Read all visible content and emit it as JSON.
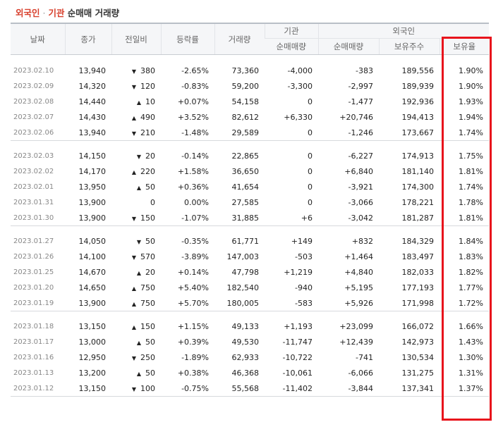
{
  "title": {
    "part1": "외국인",
    "sep": " · ",
    "part2": "기관",
    "part3": " 순매매 거래량"
  },
  "header": {
    "date": "날짜",
    "close": "종가",
    "change": "전일비",
    "rate": "등락률",
    "volume": "거래량",
    "institution_group": "기관",
    "foreign_group": "외국인",
    "inst_net": "순매매량",
    "foreign_net": "순매매량",
    "foreign_holdings": "보유주수",
    "foreign_ratio": "보유율"
  },
  "colors": {
    "up": "#d2221e",
    "down": "#1f58c8",
    "highlight": "#e8141c"
  },
  "rows": [
    {
      "date": "2023.02.10",
      "close": "13,940",
      "dir": "down",
      "change": "380",
      "rate": "-2.65%",
      "volume": "73,360",
      "inst": "-4,000",
      "inst_dir": "down",
      "foreign": "-383",
      "foreign_dir": "down",
      "holdings": "189,556",
      "ratio": "1.90%"
    },
    {
      "date": "2023.02.09",
      "close": "14,320",
      "dir": "down",
      "change": "120",
      "rate": "-0.83%",
      "volume": "59,200",
      "inst": "-3,300",
      "inst_dir": "down",
      "foreign": "-2,997",
      "foreign_dir": "down",
      "holdings": "189,939",
      "ratio": "1.90%"
    },
    {
      "date": "2023.02.08",
      "close": "14,440",
      "dir": "up",
      "change": "10",
      "rate": "+0.07%",
      "volume": "54,158",
      "inst": "0",
      "inst_dir": "flat",
      "foreign": "-1,477",
      "foreign_dir": "down",
      "holdings": "192,936",
      "ratio": "1.93%"
    },
    {
      "date": "2023.02.07",
      "close": "14,430",
      "dir": "up",
      "change": "490",
      "rate": "+3.52%",
      "volume": "82,612",
      "inst": "+6,330",
      "inst_dir": "up",
      "foreign": "+20,746",
      "foreign_dir": "up",
      "holdings": "194,413",
      "ratio": "1.94%"
    },
    {
      "date": "2023.02.06",
      "close": "13,940",
      "dir": "down",
      "change": "210",
      "rate": "-1.48%",
      "volume": "29,589",
      "inst": "0",
      "inst_dir": "flat",
      "foreign": "-1,246",
      "foreign_dir": "down",
      "holdings": "173,667",
      "ratio": "1.74%"
    },
    {
      "date": "2023.02.03",
      "close": "14,150",
      "dir": "down",
      "change": "20",
      "rate": "-0.14%",
      "volume": "22,865",
      "inst": "0",
      "inst_dir": "flat",
      "foreign": "-6,227",
      "foreign_dir": "down",
      "holdings": "174,913",
      "ratio": "1.75%"
    },
    {
      "date": "2023.02.02",
      "close": "14,170",
      "dir": "up",
      "change": "220",
      "rate": "+1.58%",
      "volume": "36,650",
      "inst": "0",
      "inst_dir": "flat",
      "foreign": "+6,840",
      "foreign_dir": "up",
      "holdings": "181,140",
      "ratio": "1.81%"
    },
    {
      "date": "2023.02.01",
      "close": "13,950",
      "dir": "up",
      "change": "50",
      "rate": "+0.36%",
      "volume": "41,654",
      "inst": "0",
      "inst_dir": "flat",
      "foreign": "-3,921",
      "foreign_dir": "down",
      "holdings": "174,300",
      "ratio": "1.74%"
    },
    {
      "date": "2023.01.31",
      "close": "13,900",
      "dir": "flat",
      "change": "0",
      "rate": "0.00%",
      "volume": "27,585",
      "inst": "0",
      "inst_dir": "flat",
      "foreign": "-3,066",
      "foreign_dir": "down",
      "holdings": "178,221",
      "ratio": "1.78%"
    },
    {
      "date": "2023.01.30",
      "close": "13,900",
      "dir": "down",
      "change": "150",
      "rate": "-1.07%",
      "volume": "31,885",
      "inst": "+6",
      "inst_dir": "up",
      "foreign": "-3,042",
      "foreign_dir": "down",
      "holdings": "181,287",
      "ratio": "1.81%"
    },
    {
      "date": "2023.01.27",
      "close": "14,050",
      "dir": "down",
      "change": "50",
      "rate": "-0.35%",
      "volume": "61,771",
      "inst": "+149",
      "inst_dir": "up",
      "foreign": "+832",
      "foreign_dir": "up",
      "holdings": "184,329",
      "ratio": "1.84%"
    },
    {
      "date": "2023.01.26",
      "close": "14,100",
      "dir": "down",
      "change": "570",
      "rate": "-3.89%",
      "volume": "147,003",
      "inst": "-503",
      "inst_dir": "down",
      "foreign": "+1,464",
      "foreign_dir": "up",
      "holdings": "183,497",
      "ratio": "1.83%"
    },
    {
      "date": "2023.01.25",
      "close": "14,670",
      "dir": "up",
      "change": "20",
      "rate": "+0.14%",
      "volume": "47,798",
      "inst": "+1,219",
      "inst_dir": "up",
      "foreign": "+4,840",
      "foreign_dir": "up",
      "holdings": "182,033",
      "ratio": "1.82%"
    },
    {
      "date": "2023.01.20",
      "close": "14,650",
      "dir": "up",
      "change": "750",
      "rate": "+5.40%",
      "volume": "182,540",
      "inst": "-940",
      "inst_dir": "down",
      "foreign": "+5,195",
      "foreign_dir": "up",
      "holdings": "177,193",
      "ratio": "1.77%"
    },
    {
      "date": "2023.01.19",
      "close": "13,900",
      "dir": "up",
      "change": "750",
      "rate": "+5.70%",
      "volume": "180,005",
      "inst": "-583",
      "inst_dir": "down",
      "foreign": "+5,926",
      "foreign_dir": "up",
      "holdings": "171,998",
      "ratio": "1.72%"
    },
    {
      "date": "2023.01.18",
      "close": "13,150",
      "dir": "up",
      "change": "150",
      "rate": "+1.15%",
      "volume": "49,133",
      "inst": "+1,193",
      "inst_dir": "up",
      "foreign": "+23,099",
      "foreign_dir": "up",
      "holdings": "166,072",
      "ratio": "1.66%"
    },
    {
      "date": "2023.01.17",
      "close": "13,000",
      "dir": "up",
      "change": "50",
      "rate": "+0.39%",
      "volume": "49,530",
      "inst": "-11,747",
      "inst_dir": "down",
      "foreign": "+12,439",
      "foreign_dir": "up",
      "holdings": "142,973",
      "ratio": "1.43%"
    },
    {
      "date": "2023.01.16",
      "close": "12,950",
      "dir": "down",
      "change": "250",
      "rate": "-1.89%",
      "volume": "62,933",
      "inst": "-10,722",
      "inst_dir": "down",
      "foreign": "-741",
      "foreign_dir": "down",
      "holdings": "130,534",
      "ratio": "1.30%"
    },
    {
      "date": "2023.01.13",
      "close": "13,200",
      "dir": "up",
      "change": "50",
      "rate": "+0.38%",
      "volume": "46,368",
      "inst": "-10,061",
      "inst_dir": "down",
      "foreign": "-6,066",
      "foreign_dir": "down",
      "holdings": "131,275",
      "ratio": "1.31%"
    },
    {
      "date": "2023.01.12",
      "close": "13,150",
      "dir": "down",
      "change": "100",
      "rate": "-0.75%",
      "volume": "55,568",
      "inst": "-11,402",
      "inst_dir": "down",
      "foreign": "-3,844",
      "foreign_dir": "down",
      "holdings": "137,341",
      "ratio": "1.37%"
    }
  ]
}
